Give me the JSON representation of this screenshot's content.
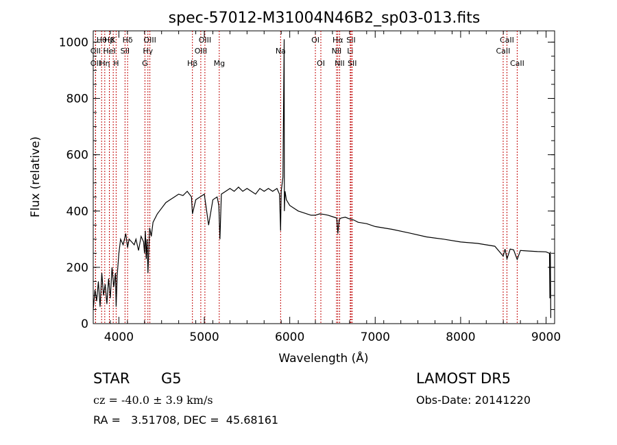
{
  "chart_data": {
    "type": "line",
    "title": "spec-57012-M31004N46B2_sp03-013.fits",
    "xlabel": "Wavelength (Å)",
    "ylabel": "Flux (relative)",
    "xlim": [
      3700,
      9100
    ],
    "ylim": [
      0,
      1040
    ],
    "xticks": [
      4000,
      5000,
      6000,
      7000,
      8000,
      9000
    ],
    "yticks": [
      0,
      200,
      400,
      600,
      800,
      1000
    ],
    "grid": false,
    "line_color": "#000000",
    "marker_color": "#c00000",
    "series": [
      {
        "x": [
          3700,
          3720,
          3740,
          3760,
          3780,
          3800,
          3820,
          3840,
          3860,
          3880,
          3900,
          3920,
          3940,
          3960,
          3968,
          3980,
          4000,
          4020,
          4050,
          4080,
          4102,
          4120,
          4150,
          4180,
          4200,
          4230,
          4260,
          4290,
          4300,
          4310,
          4320,
          4330,
          4340,
          4360,
          4380,
          4400,
          4450,
          4500,
          4550,
          4600,
          4650,
          4700,
          4750,
          4800,
          4850,
          4861,
          4900,
          4950,
          5000,
          5050,
          5100,
          5150,
          5170,
          5183,
          5200,
          5250,
          5300,
          5350,
          5400,
          5450,
          5500,
          5550,
          5600,
          5650,
          5700,
          5750,
          5800,
          5850,
          5880,
          5893,
          5900,
          5920,
          5935,
          5937,
          5945,
          5960,
          6000,
          6050,
          6100,
          6150,
          6200,
          6250,
          6300,
          6350,
          6400,
          6450,
          6500,
          6550,
          6563,
          6580,
          6600,
          6650,
          6700,
          6750,
          6800,
          6900,
          7000,
          7200,
          7400,
          7600,
          7800,
          8000,
          8200,
          8400,
          8498,
          8520,
          8542,
          8580,
          8620,
          8662,
          8700,
          8800,
          8900,
          9000,
          9040,
          9045,
          9050,
          9055
        ],
        "y": [
          50,
          120,
          80,
          150,
          60,
          180,
          100,
          140,
          70,
          160,
          90,
          200,
          130,
          180,
          60,
          170,
          250,
          300,
          280,
          320,
          270,
          300,
          290,
          280,
          300,
          260,
          310,
          290,
          250,
          330,
          230,
          300,
          180,
          340,
          310,
          360,
          390,
          410,
          430,
          440,
          450,
          460,
          455,
          470,
          450,
          390,
          440,
          450,
          460,
          350,
          440,
          450,
          420,
          300,
          460,
          470,
          480,
          470,
          485,
          470,
          480,
          470,
          460,
          480,
          470,
          480,
          470,
          480,
          460,
          330,
          470,
          520,
          1010,
          400,
          470,
          440,
          420,
          410,
          400,
          395,
          390,
          385,
          385,
          390,
          388,
          385,
          380,
          375,
          320,
          370,
          375,
          378,
          372,
          368,
          360,
          355,
          345,
          335,
          322,
          308,
          300,
          290,
          285,
          275,
          240,
          265,
          230,
          265,
          262,
          228,
          260,
          258,
          256,
          255,
          250,
          90,
          255,
          20
        ]
      }
    ],
    "lines": [
      {
        "label": "OII",
        "x": 3727,
        "row": 3
      },
      {
        "label": "Hθ",
        "x": 3798,
        "row": 1
      },
      {
        "label": "OII",
        "x": 3727,
        "row": 2
      },
      {
        "label": "Hη",
        "x": 3835,
        "row": 3
      },
      {
        "label": "Hβ",
        "x": 3889,
        "row": 1
      },
      {
        "label": "HeI",
        "x": 3889,
        "row": 2
      },
      {
        "label": "K",
        "x": 3934,
        "row": 1
      },
      {
        "label": "H",
        "x": 3968,
        "row": 3
      },
      {
        "label": "SII",
        "x": 4072,
        "row": 2
      },
      {
        "label": "Hδ",
        "x": 4102,
        "row": 1
      },
      {
        "label": "G",
        "x": 4305,
        "row": 3
      },
      {
        "label": "Hγ",
        "x": 4340,
        "row": 2
      },
      {
        "label": "OIII",
        "x": 4363,
        "row": 1
      },
      {
        "label": "Hβ",
        "x": 4861,
        "row": 3
      },
      {
        "label": "OIII",
        "x": 4959,
        "row": 2
      },
      {
        "label": "OIII",
        "x": 5007,
        "row": 1
      },
      {
        "label": "Mg",
        "x": 5175,
        "row": 3
      },
      {
        "label": "Na",
        "x": 5893,
        "row": 2
      },
      {
        "label": "OI",
        "x": 6300,
        "row": 1
      },
      {
        "label": "OI",
        "x": 6364,
        "row": 3
      },
      {
        "label": "Hα",
        "x": 6563,
        "row": 1
      },
      {
        "label": "NII",
        "x": 6548,
        "row": 2
      },
      {
        "label": "NII",
        "x": 6584,
        "row": 3
      },
      {
        "label": "SII",
        "x": 6717,
        "row": 1
      },
      {
        "label": "Li",
        "x": 6708,
        "row": 2
      },
      {
        "label": "SII",
        "x": 6731,
        "row": 3
      },
      {
        "label": "CaII",
        "x": 8542,
        "row": 1
      },
      {
        "label": "CaII",
        "x": 8498,
        "row": 2
      },
      {
        "label": "CaII",
        "x": 8662,
        "row": 3
      }
    ]
  },
  "info": {
    "class_label": "STAR",
    "subclass": "G5",
    "survey": "LAMOST DR5",
    "cz_text": "cz = -40.0 ± 3.9 km/s",
    "obs_date": "Obs-Date: 20141220",
    "coords": "RA =   3.51708, DEC =  45.68161"
  }
}
